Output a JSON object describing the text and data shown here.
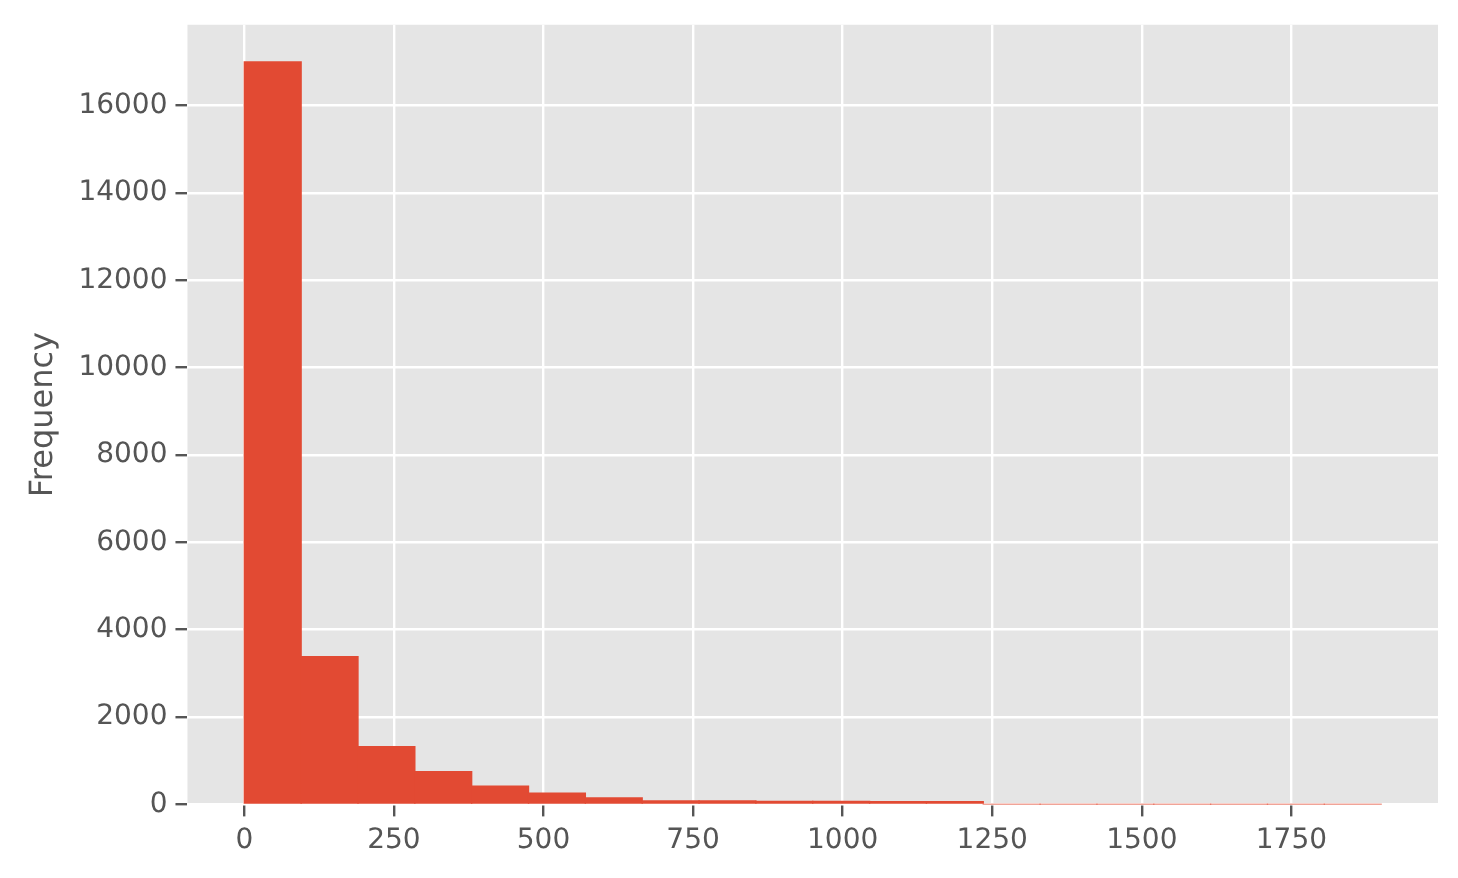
{
  "chart_data": {
    "type": "histogram",
    "ylabel": "Frequency",
    "bins": [
      0,
      95,
      190,
      285,
      380,
      475,
      570,
      665,
      760,
      855,
      950,
      1045,
      1140,
      1235,
      1330,
      1425,
      1520,
      1615,
      1710,
      1805,
      1900
    ],
    "values": [
      17000,
      3380,
      1320,
      750,
      420,
      260,
      150,
      80,
      80,
      70,
      70,
      60,
      60,
      0,
      0,
      0,
      0,
      0,
      0,
      0
    ],
    "color": "#e24a33",
    "xlim": [
      -95,
      1995
    ],
    "xticks": [
      0,
      250,
      500,
      750,
      1000,
      1250,
      1500,
      1750
    ],
    "ylim": [
      0,
      17850
    ],
    "yticks": [
      0,
      2000,
      4000,
      6000,
      8000,
      10000,
      12000,
      14000,
      16000
    ],
    "grid": true
  }
}
